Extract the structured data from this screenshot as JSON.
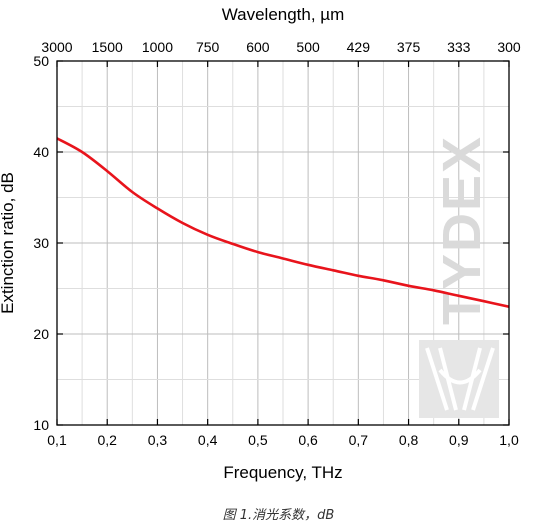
{
  "chart_data": {
    "type": "line",
    "title": "",
    "xlabel": "Frequency, THz",
    "ylabel": "Extinction ratio, dB",
    "top_xlabel": "Wavelength, µm",
    "xlim": [
      0.1,
      1.0
    ],
    "ylim": [
      10,
      50
    ],
    "x_ticks": [
      0.1,
      0.2,
      0.3,
      0.4,
      0.5,
      0.6,
      0.7,
      0.8,
      0.9,
      1.0
    ],
    "x_tick_labels": [
      "0,1",
      "0,2",
      "0,3",
      "0,4",
      "0,5",
      "0,6",
      "0,7",
      "0,8",
      "0,9",
      "1,0"
    ],
    "y_ticks": [
      10,
      20,
      30,
      40,
      50
    ],
    "y_tick_labels": [
      "10",
      "20",
      "30",
      "40",
      "50"
    ],
    "top_ticks": [
      0.1,
      0.2,
      0.3,
      0.4,
      0.5,
      0.6,
      0.7,
      0.8,
      0.9,
      1.0
    ],
    "top_tick_labels": [
      "3000",
      "1500",
      "1000",
      "750",
      "600",
      "500",
      "429",
      "375",
      "333",
      "300"
    ],
    "grid": true,
    "line_color": "#e8141c",
    "series": [
      {
        "x": [
          0.1,
          0.15,
          0.2,
          0.25,
          0.3,
          0.35,
          0.4,
          0.45,
          0.5,
          0.55,
          0.6,
          0.65,
          0.7,
          0.75,
          0.8,
          0.85,
          0.9,
          0.95,
          1.0
        ],
        "values": [
          41.5,
          40.0,
          37.9,
          35.6,
          33.8,
          32.2,
          30.9,
          29.9,
          29.0,
          28.3,
          27.6,
          27.0,
          26.4,
          25.9,
          25.3,
          24.8,
          24.2,
          23.6,
          23.0
        ]
      }
    ]
  },
  "watermark": {
    "text": "TYDEX"
  },
  "caption": "图 1.消光系数，dB"
}
